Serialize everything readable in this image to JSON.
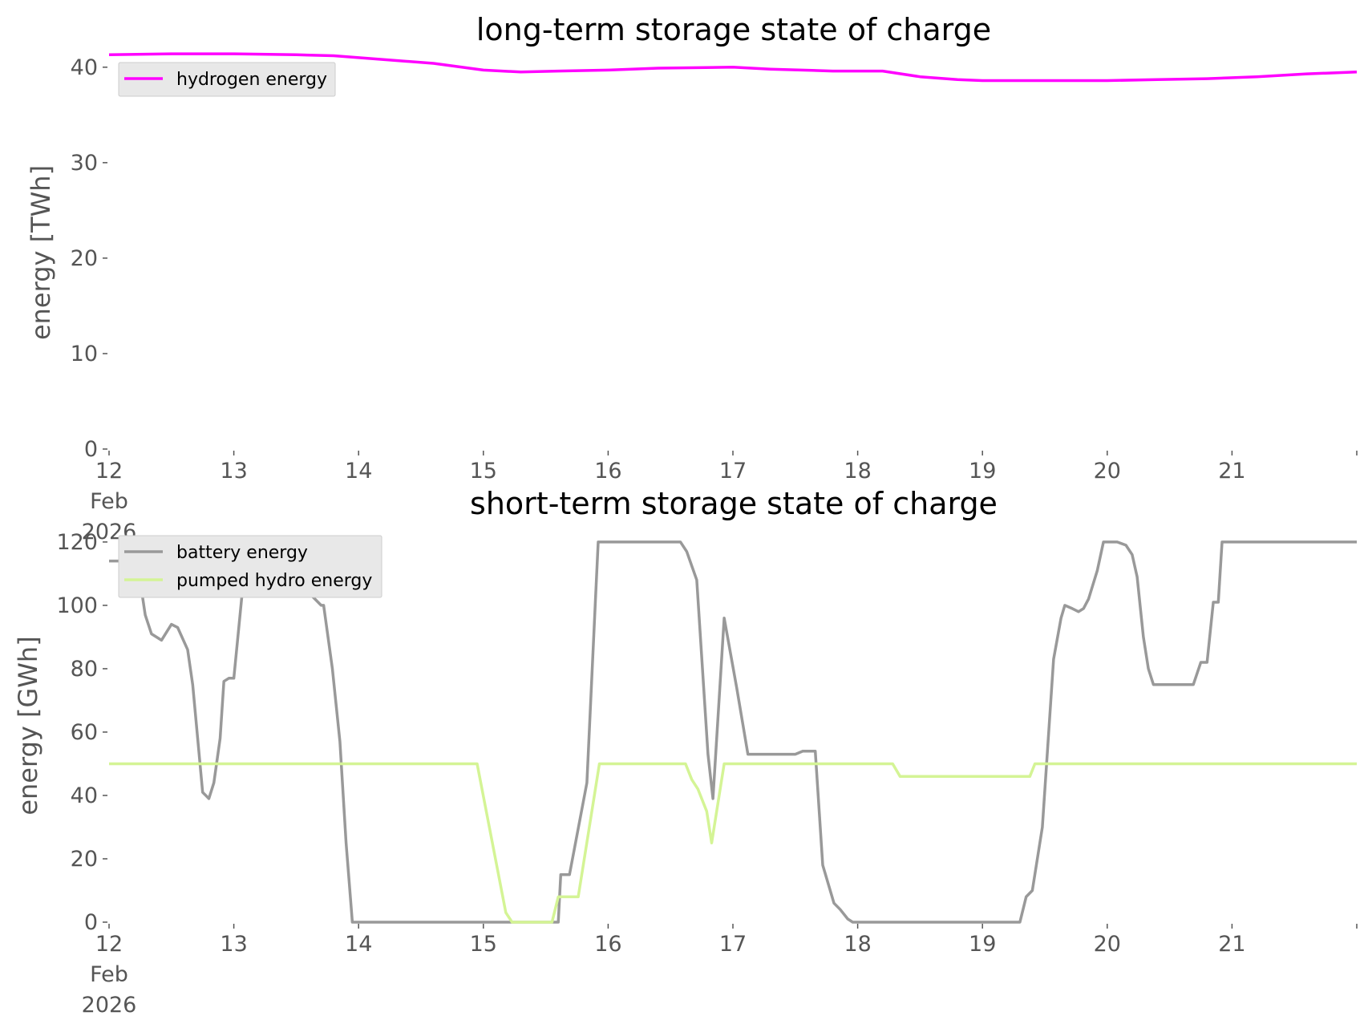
{
  "chart_data": [
    {
      "type": "line",
      "title": "long-term storage state of charge",
      "ylabel": "energy [TWh]",
      "xlabel": "",
      "x_ticks": [
        "12\nFeb\n2026",
        "13",
        "14",
        "15",
        "16",
        "17",
        "18",
        "19",
        "20",
        "21"
      ],
      "x_domain_days": [
        12,
        22
      ],
      "ylim": [
        0,
        42
      ],
      "yticks": [
        0,
        10,
        20,
        30,
        40
      ],
      "grid": false,
      "legend": "top-left",
      "series": [
        {
          "name": "hydrogen energy",
          "color": "#ff00ff",
          "x": [
            12,
            12.5,
            13,
            13.5,
            13.8,
            14,
            14.6,
            15,
            15.3,
            15.6,
            16,
            16.4,
            17,
            17.3,
            17.8,
            18.2,
            18.5,
            18.8,
            19,
            19.5,
            20,
            20.4,
            20.8,
            21.2,
            21.6,
            22
          ],
          "y": [
            41.3,
            41.4,
            41.4,
            41.3,
            41.2,
            41.0,
            40.4,
            39.7,
            39.5,
            39.6,
            39.7,
            39.9,
            40.0,
            39.8,
            39.6,
            39.6,
            39.0,
            38.7,
            38.6,
            38.6,
            38.6,
            38.7,
            38.8,
            39.0,
            39.3,
            39.5
          ]
        }
      ]
    },
    {
      "type": "line",
      "title": "short-term storage state of charge",
      "ylabel": "energy [GWh]",
      "xlabel": "",
      "x_ticks": [
        "12\nFeb\n2026",
        "13",
        "14",
        "15",
        "16",
        "17",
        "18",
        "19",
        "20",
        "21"
      ],
      "x_domain_days": [
        12,
        22
      ],
      "ylim": [
        0,
        122
      ],
      "yticks": [
        0,
        20,
        40,
        60,
        80,
        100,
        120
      ],
      "grid": false,
      "legend": "top-left",
      "series": [
        {
          "name": "battery energy",
          "color": "#999999",
          "x": [
            12,
            12.13,
            12.21,
            12.29,
            12.34,
            12.42,
            12.5,
            12.55,
            12.63,
            12.67,
            12.75,
            12.8,
            12.84,
            12.89,
            12.92,
            12.96,
            13,
            13.08,
            13.12,
            13.2,
            13.7,
            13.72,
            13.79,
            13.85,
            13.9,
            13.93,
            13.95,
            15.5,
            15.6,
            15.62,
            15.69,
            15.83,
            15.9,
            15.92,
            15.97,
            16.58,
            16.63,
            16.71,
            16.8,
            16.84,
            16.93,
            17.03,
            17.12,
            17.5,
            17.56,
            17.66,
            17.72,
            17.81,
            17.86,
            17.92,
            17.96,
            18,
            19.3,
            19.35,
            19.4,
            19.48,
            19.57,
            19.63,
            19.66,
            19.72,
            19.77,
            19.81,
            19.85,
            19.92,
            19.97,
            20.08,
            20.15,
            20.2,
            20.24,
            20.29,
            20.33,
            20.37,
            20.69,
            20.75,
            20.8,
            20.85,
            20.89,
            20.92,
            22
          ],
          "y": [
            114,
            114,
            118,
            97,
            91,
            89,
            94,
            93,
            86,
            75,
            41,
            39,
            44,
            58,
            76,
            77,
            77,
            109,
            120,
            120,
            100,
            100,
            80,
            57,
            25,
            10,
            0,
            0,
            0,
            15,
            15,
            44,
            103,
            120,
            120,
            120,
            117,
            108,
            53,
            39,
            96,
            74,
            53,
            53,
            54,
            54,
            18,
            6,
            4,
            1,
            0,
            0,
            0,
            8,
            10,
            30,
            83,
            96,
            100,
            99,
            98,
            99,
            102,
            111,
            120,
            120,
            119,
            116,
            109,
            90,
            80,
            75,
            75,
            82,
            82,
            101,
            101,
            120,
            120
          ]
        },
        {
          "name": "pumped hydro energy",
          "color": "#d4f495",
          "x": [
            12,
            14.95,
            15.18,
            15.23,
            15.55,
            15.6,
            15.76,
            15.93,
            16.62,
            16.67,
            16.72,
            16.79,
            16.83,
            16.93,
            16.97,
            18.28,
            18.34,
            19.38,
            19.42,
            22
          ],
          "y": [
            50,
            50,
            3,
            0,
            0,
            8,
            8,
            50,
            50,
            45,
            42,
            35,
            25,
            50,
            50,
            50,
            46,
            46,
            50,
            50
          ]
        }
      ]
    }
  ]
}
